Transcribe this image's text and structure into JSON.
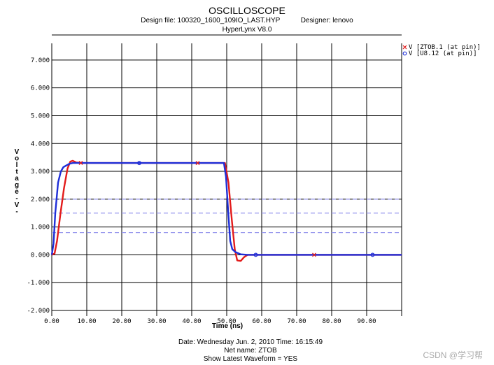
{
  "header": {
    "title": "OSCILLOSCOPE",
    "line1_design": "Design file: 100320_1600_109IO_LAST.HYP",
    "line1_designer": "Designer: lenovo",
    "line2": "HyperLynx V8.0"
  },
  "footer": {
    "date": "Date: Wednesday Jun. 2, 2010   Time: 16:15:49",
    "net": "Net name: ZTOB",
    "mode": "Show Latest Waveform = YES"
  },
  "watermark": "CSDN @学习帮",
  "colors": {
    "red": "#e31b1b",
    "blue": "#1f2fd8",
    "ref": "#9999ee",
    "grid": "#000000"
  },
  "chart_data": {
    "type": "line",
    "title": "OSCILLOSCOPE",
    "xlabel": "Time  (ns)",
    "ylabel": "Voltage -V-",
    "xlim": [
      0,
      100
    ],
    "ylim": [
      -2.2,
      7.6
    ],
    "grid": true,
    "legend_position": "top-right",
    "xticks": [
      0,
      10,
      20,
      30,
      40,
      50,
      60,
      70,
      80,
      90
    ],
    "xtick_labels": [
      "0.00",
      "10.00",
      "20.00",
      "30.00",
      "40.00",
      "50.00",
      "60.00",
      "70.00",
      "80.00",
      "90.00"
    ],
    "yticks": [
      7,
      6,
      5,
      4,
      3,
      2,
      1,
      0,
      -1,
      -2
    ],
    "ytick_labels": [
      "7.000",
      "6.000",
      "5.000",
      "4.000",
      "3.000",
      "2.000",
      "1.000",
      "0.000",
      "-1.000",
      "-2.000"
    ],
    "reference_levels": [
      2.0,
      1.5,
      0.8
    ],
    "series": [
      {
        "name": "V [ZTOB.1 (at pin)]",
        "color": "#e31b1b",
        "marker": "x",
        "markers_x": [
          8.3,
          41.7,
          75.0
        ],
        "x": [
          0,
          0.8,
          1.5,
          2.5,
          3.5,
          4.5,
          5.3,
          6.0,
          7.0,
          8.5,
          10,
          30,
          49.5,
          50.5,
          51.5,
          52.3,
          53.0,
          54.0,
          55.0,
          56.0,
          58,
          100
        ],
        "y": [
          0,
          0.05,
          0.5,
          1.5,
          2.4,
          3.1,
          3.35,
          3.38,
          3.32,
          3.3,
          3.3,
          3.3,
          3.3,
          2.6,
          1.2,
          0.2,
          -0.2,
          -0.22,
          -0.08,
          0.0,
          0.0,
          0.0
        ]
      },
      {
        "name": "V [U8.12 (at pin)]",
        "color": "#1f2fd8",
        "marker": "o",
        "markers_x": [
          25.0,
          58.3,
          91.7
        ],
        "x": [
          0,
          0.5,
          1.0,
          1.8,
          2.6,
          3.3,
          4.0,
          5.0,
          6.0,
          8.0,
          10,
          30,
          49.2,
          49.8,
          50.4,
          51.0,
          51.6,
          52.5,
          54.0,
          56.0,
          58,
          100
        ],
        "y": [
          0,
          0.4,
          1.5,
          2.6,
          3.0,
          3.15,
          3.2,
          3.27,
          3.3,
          3.3,
          3.3,
          3.3,
          3.3,
          2.8,
          1.6,
          0.5,
          0.2,
          0.1,
          0.02,
          0.0,
          0.0,
          0.0
        ]
      }
    ]
  }
}
